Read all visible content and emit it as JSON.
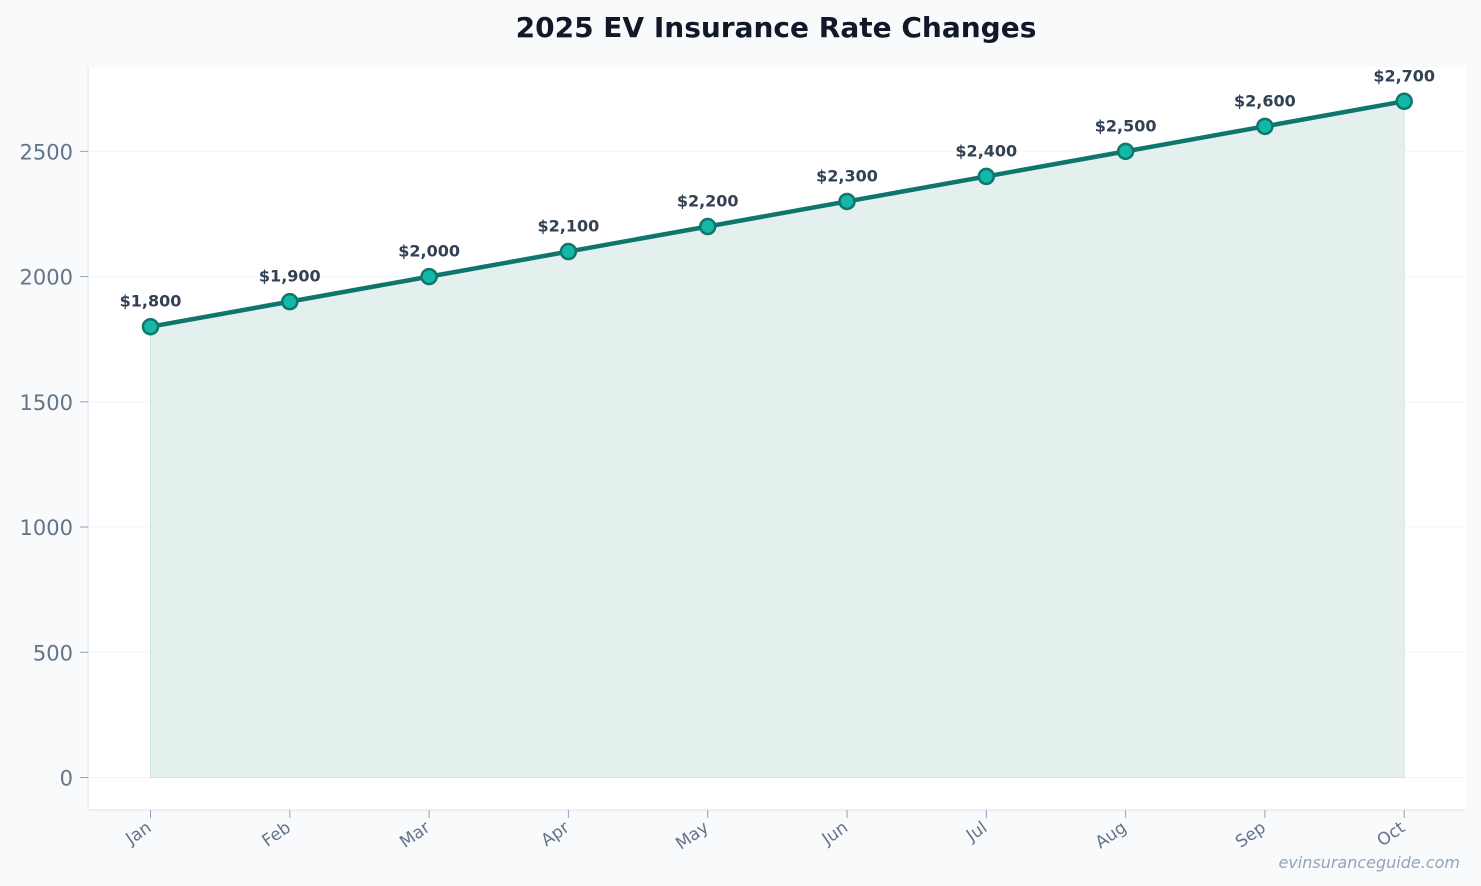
{
  "chart_data": {
    "type": "line",
    "title": "2025 EV Insurance Rate Changes",
    "xlabel": "",
    "ylabel": "",
    "categories": [
      "Jan",
      "Feb",
      "Mar",
      "Apr",
      "May",
      "Jun",
      "Jul",
      "Aug",
      "Sep",
      "Oct"
    ],
    "series": [
      {
        "values": [
          1800,
          1900,
          2000,
          2100,
          2200,
          2300,
          2400,
          2500,
          2600,
          2700
        ],
        "labels": [
          "$1,800",
          "$1,900",
          "$2,000",
          "$2,100",
          "$2,200",
          "$2,300",
          "$2,400",
          "$2,500",
          "$2,600",
          "$2,700"
        ],
        "color": "#0f766e",
        "marker_color": "#14b8a6",
        "fill": "area"
      }
    ],
    "y_ticks": [
      0,
      500,
      1000,
      1500,
      2000,
      2500
    ],
    "ylim": [
      0,
      2700
    ],
    "grid": true,
    "legend": "none"
  },
  "watermark": "evinsuranceguide.com",
  "colors": {
    "page_background": "#f8fafc",
    "plot_background": "#ffffff",
    "line": "#0f766e",
    "marker_fill": "#14b8a6",
    "area_fill": "#e4f0ee"
  }
}
